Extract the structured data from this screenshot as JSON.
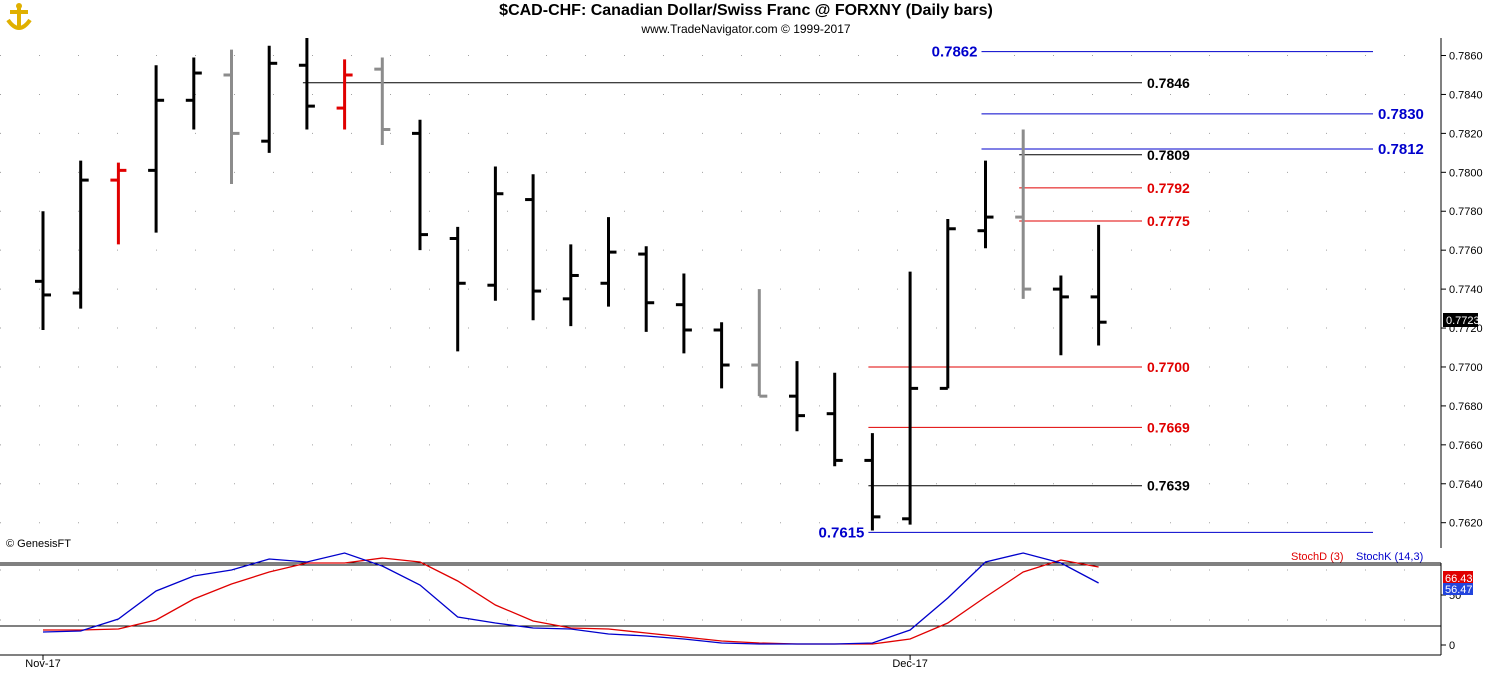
{
  "header": {
    "title": "$CAD-CHF:  Canadian Dollar/Swiss Franc @ FORXNY  (Daily bars)",
    "subtitle": "www.TradeNavigator.com © 1999-2017"
  },
  "copyright": "© GenesisFT",
  "colors": {
    "up": "#000000",
    "gray": "#8c8c8c",
    "red": "#e00000",
    "blue": "#0000cc",
    "level_black": "#000000"
  },
  "chart_data": [
    {
      "type": "ohlc",
      "title": "$CAD-CHF:  Canadian Dollar/Swiss Franc @ FORXNY  (Daily bars)",
      "ylim": [
        0.7607,
        0.7869
      ],
      "yticks": [
        "0.7620",
        "0.7640",
        "0.7660",
        "0.7680",
        "0.7700",
        "0.7720",
        "0.7740",
        "0.7760",
        "0.7780",
        "0.7800",
        "0.7820",
        "0.7840",
        "0.7860"
      ],
      "xlabels": [
        {
          "label": "Nov-17",
          "bar": 0
        },
        {
          "label": "Dec-17",
          "bar": 23
        }
      ],
      "last_price": "0.7723",
      "bars": [
        {
          "o": 0.7744,
          "h": 0.778,
          "l": 0.7719,
          "c": 0.7737,
          "color": "black"
        },
        {
          "o": 0.7738,
          "h": 0.7806,
          "l": 0.773,
          "c": 0.7796,
          "color": "black"
        },
        {
          "o": 0.7796,
          "h": 0.7805,
          "l": 0.7763,
          "c": 0.7801,
          "color": "red"
        },
        {
          "o": 0.7801,
          "h": 0.7855,
          "l": 0.7769,
          "c": 0.7837,
          "color": "black"
        },
        {
          "o": 0.7837,
          "h": 0.7859,
          "l": 0.7822,
          "c": 0.7851,
          "color": "black"
        },
        {
          "o": 0.785,
          "h": 0.7863,
          "l": 0.7794,
          "c": 0.782,
          "color": "gray"
        },
        {
          "o": 0.7816,
          "h": 0.7865,
          "l": 0.781,
          "c": 0.7856,
          "color": "black"
        },
        {
          "o": 0.7855,
          "h": 0.7869,
          "l": 0.7822,
          "c": 0.7834,
          "color": "black"
        },
        {
          "o": 0.7833,
          "h": 0.7858,
          "l": 0.7822,
          "c": 0.785,
          "color": "red"
        },
        {
          "o": 0.7853,
          "h": 0.7859,
          "l": 0.7814,
          "c": 0.7822,
          "color": "gray"
        },
        {
          "o": 0.782,
          "h": 0.7827,
          "l": 0.776,
          "c": 0.7768,
          "color": "black"
        },
        {
          "o": 0.7766,
          "h": 0.7772,
          "l": 0.7708,
          "c": 0.7743,
          "color": "black"
        },
        {
          "o": 0.7742,
          "h": 0.7803,
          "l": 0.7734,
          "c": 0.7789,
          "color": "black"
        },
        {
          "o": 0.7786,
          "h": 0.7799,
          "l": 0.7724,
          "c": 0.7739,
          "color": "black"
        },
        {
          "o": 0.7735,
          "h": 0.7763,
          "l": 0.7721,
          "c": 0.7747,
          "color": "black"
        },
        {
          "o": 0.7743,
          "h": 0.7777,
          "l": 0.7731,
          "c": 0.7759,
          "color": "black"
        },
        {
          "o": 0.7758,
          "h": 0.7762,
          "l": 0.7718,
          "c": 0.7733,
          "color": "black"
        },
        {
          "o": 0.7732,
          "h": 0.7748,
          "l": 0.7707,
          "c": 0.7719,
          "color": "black"
        },
        {
          "o": 0.7719,
          "h": 0.7723,
          "l": 0.7689,
          "c": 0.7701,
          "color": "black"
        },
        {
          "o": 0.7701,
          "h": 0.774,
          "l": 0.7685,
          "c": 0.7685,
          "color": "gray"
        },
        {
          "o": 0.7685,
          "h": 0.7703,
          "l": 0.7667,
          "c": 0.7675,
          "color": "black"
        },
        {
          "o": 0.7676,
          "h": 0.7697,
          "l": 0.7649,
          "c": 0.7652,
          "color": "black"
        },
        {
          "o": 0.7652,
          "h": 0.7666,
          "l": 0.7616,
          "c": 0.7623,
          "color": "black"
        },
        {
          "o": 0.7622,
          "h": 0.7749,
          "l": 0.7619,
          "c": 0.7689,
          "color": "black"
        },
        {
          "o": 0.7689,
          "h": 0.7776,
          "l": 0.7689,
          "c": 0.7771,
          "color": "black"
        },
        {
          "o": 0.777,
          "h": 0.7806,
          "l": 0.7761,
          "c": 0.7777,
          "color": "black"
        },
        {
          "o": 0.7777,
          "h": 0.7822,
          "l": 0.7735,
          "c": 0.774,
          "color": "gray"
        },
        {
          "o": 0.774,
          "h": 0.7747,
          "l": 0.7706,
          "c": 0.7736,
          "color": "black"
        },
        {
          "o": 0.7736,
          "h": 0.7773,
          "l": 0.7711,
          "c": 0.7723,
          "color": "black"
        }
      ],
      "levels": [
        {
          "value": 0.7862,
          "label": "0.7862",
          "color": "blue",
          "from_bar": 25,
          "label_side": "left"
        },
        {
          "value": 0.7846,
          "label": "0.7846",
          "color": "black",
          "from_bar": 7,
          "label_side": "right"
        },
        {
          "value": 0.783,
          "label": "0.7830",
          "color": "blue",
          "from_bar": 25,
          "label_side": "right"
        },
        {
          "value": 0.7812,
          "label": "0.7812",
          "color": "blue",
          "from_bar": 25,
          "label_side": "right"
        },
        {
          "value": 0.7809,
          "label": "0.7809",
          "color": "black",
          "from_bar": 26,
          "label_side": "right"
        },
        {
          "value": 0.7792,
          "label": "0.7792",
          "color": "red",
          "from_bar": 26,
          "label_side": "right"
        },
        {
          "value": 0.7775,
          "label": "0.7775",
          "color": "red",
          "from_bar": 26,
          "label_side": "right"
        },
        {
          "value": 0.77,
          "label": "0.7700",
          "color": "red",
          "from_bar": 22,
          "label_side": "right"
        },
        {
          "value": 0.7669,
          "label": "0.7669",
          "color": "red",
          "from_bar": 22,
          "label_side": "right"
        },
        {
          "value": 0.7639,
          "label": "0.7639",
          "color": "black",
          "from_bar": 22,
          "label_side": "right"
        },
        {
          "value": 0.7615,
          "label": "0.7615",
          "color": "blue",
          "from_bar": 22,
          "label_side": "left"
        }
      ]
    },
    {
      "type": "line",
      "ylim": [
        0,
        100
      ],
      "yticks": [
        "0",
        "50"
      ],
      "reference_lines": [
        80,
        20
      ],
      "series": [
        {
          "name": "StochD (3)",
          "color": "red",
          "values": [
            15,
            15,
            16,
            25,
            46,
            61,
            73,
            82,
            82,
            87,
            83,
            64,
            40,
            24,
            17,
            16,
            12,
            8,
            4,
            2,
            1,
            1,
            1,
            6,
            22,
            48,
            73,
            85,
            78
          ]
        },
        {
          "name": "StochK (14,3)",
          "color": "blue",
          "values": [
            13,
            14,
            26,
            54,
            69,
            75,
            86,
            83,
            92,
            79,
            60,
            28,
            22,
            17,
            16,
            11,
            9,
            6,
            2,
            1,
            1,
            1,
            2,
            15,
            47,
            83,
            92,
            82,
            62
          ]
        }
      ],
      "last_values": [
        "66.43",
        "56.47"
      ]
    }
  ]
}
